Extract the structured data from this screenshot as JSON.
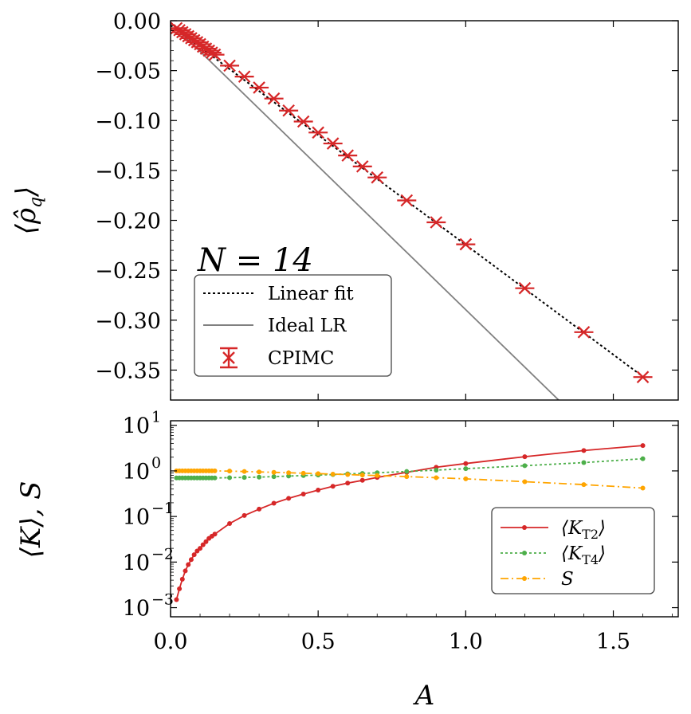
{
  "chart_data": [
    {
      "type": "line",
      "panel": "top",
      "xlabel": "",
      "ylabel": "⟨ρ̂_q⟩",
      "ylabel_display": "⟨ρ̂q⟩",
      "xlim": [
        0.0,
        1.72
      ],
      "ylim": [
        -0.38,
        0.0
      ],
      "yticks": [
        0.0,
        -0.05,
        -0.1,
        -0.15,
        -0.2,
        -0.25,
        -0.3,
        -0.35
      ],
      "ytick_labels": [
        "0.00",
        "−0.05",
        "−0.10",
        "−0.15",
        "−0.20",
        "−0.25",
        "−0.30",
        "−0.35"
      ],
      "annotation": "N = 14",
      "legend_position": "lower-left",
      "series": [
        {
          "name": "Linear fit",
          "style": "dotted",
          "color": "#000000",
          "x": [
            0.0,
            1.6
          ],
          "y": [
            -0.0045,
            -0.3565
          ]
        },
        {
          "name": "Ideal LR",
          "style": "solid",
          "color": "#808080",
          "x": [
            0.0,
            1.6
          ],
          "y": [
            -0.002,
            -0.462
          ]
        },
        {
          "name": "CPIMC",
          "style": "errorbar-x",
          "color": "#d62728",
          "x": [
            0.02,
            0.03,
            0.04,
            0.05,
            0.06,
            0.07,
            0.08,
            0.09,
            0.1,
            0.11,
            0.12,
            0.13,
            0.14,
            0.15,
            0.2,
            0.25,
            0.3,
            0.35,
            0.4,
            0.45,
            0.5,
            0.55,
            0.6,
            0.65,
            0.7,
            0.8,
            0.9,
            1.0,
            1.2,
            1.4,
            1.6
          ],
          "y": [
            -0.0075,
            -0.0095,
            -0.0115,
            -0.0135,
            -0.0155,
            -0.0175,
            -0.0195,
            -0.0215,
            -0.0235,
            -0.026,
            -0.028,
            -0.03,
            -0.032,
            -0.034,
            -0.045,
            -0.056,
            -0.067,
            -0.078,
            -0.09,
            -0.101,
            -0.112,
            -0.123,
            -0.135,
            -0.146,
            -0.157,
            -0.18,
            -0.202,
            -0.224,
            -0.268,
            -0.312,
            -0.357
          ]
        }
      ]
    },
    {
      "type": "line",
      "panel": "bottom",
      "xlabel": "A",
      "ylabel": "⟨K⟩, S",
      "xlim": [
        0.0,
        1.72
      ],
      "ylim_exp": [
        -3.2,
        1.1
      ],
      "yscale": "log",
      "xticks": [
        0.0,
        0.5,
        1.0,
        1.5
      ],
      "xtick_labels": [
        "0.0",
        "0.5",
        "1.0",
        "1.5"
      ],
      "ytick_exponents": [
        -3,
        -2,
        -1,
        0,
        1
      ],
      "ytick_base": "10",
      "legend_position": "lower-right",
      "series": [
        {
          "name": "⟨K_T2⟩",
          "label_main": "⟨K",
          "label_sub": "T2",
          "label_close": "⟩",
          "style": "solid",
          "color": "#d62728",
          "x": [
            0.02,
            0.03,
            0.04,
            0.05,
            0.06,
            0.07,
            0.08,
            0.09,
            0.1,
            0.11,
            0.12,
            0.13,
            0.14,
            0.15,
            0.2,
            0.25,
            0.3,
            0.35,
            0.4,
            0.45,
            0.5,
            0.55,
            0.6,
            0.65,
            0.7,
            0.8,
            0.9,
            1.0,
            1.2,
            1.4,
            1.6
          ],
          "y": [
            0.0015,
            0.0026,
            0.0042,
            0.0064,
            0.0088,
            0.0113,
            0.0145,
            0.0175,
            0.02,
            0.024,
            0.028,
            0.033,
            0.037,
            0.041,
            0.07,
            0.105,
            0.145,
            0.195,
            0.25,
            0.31,
            0.38,
            0.46,
            0.54,
            0.62,
            0.72,
            0.93,
            1.2,
            1.45,
            2.05,
            2.8,
            3.6
          ]
        },
        {
          "name": "⟨K_T4⟩",
          "label_main": "⟨K",
          "label_sub": "T4",
          "label_close": "⟩",
          "style": "dotted",
          "color": "#4daf4a",
          "x": [
            0.02,
            0.03,
            0.04,
            0.05,
            0.06,
            0.07,
            0.08,
            0.09,
            0.1,
            0.11,
            0.12,
            0.13,
            0.14,
            0.15,
            0.2,
            0.25,
            0.3,
            0.35,
            0.4,
            0.45,
            0.5,
            0.55,
            0.6,
            0.65,
            0.7,
            0.8,
            0.9,
            1.0,
            1.2,
            1.4,
            1.6
          ],
          "y": [
            0.7,
            0.7,
            0.7,
            0.7,
            0.7,
            0.7,
            0.7,
            0.7,
            0.7,
            0.7,
            0.7,
            0.7,
            0.7,
            0.7,
            0.71,
            0.72,
            0.73,
            0.75,
            0.77,
            0.79,
            0.81,
            0.83,
            0.86,
            0.88,
            0.91,
            0.97,
            1.04,
            1.12,
            1.3,
            1.52,
            1.85
          ]
        },
        {
          "name": "S",
          "label_main": "S",
          "label_sub": "",
          "label_close": "",
          "style": "dashdot",
          "color": "#ffa500",
          "x": [
            0.02,
            0.03,
            0.04,
            0.05,
            0.06,
            0.07,
            0.08,
            0.09,
            0.1,
            0.11,
            0.12,
            0.13,
            0.14,
            0.15,
            0.2,
            0.25,
            0.3,
            0.35,
            0.4,
            0.45,
            0.5,
            0.55,
            0.6,
            0.65,
            0.7,
            0.8,
            0.9,
            1.0,
            1.2,
            1.4,
            1.6
          ],
          "y": [
            1.0,
            1.0,
            1.0,
            1.0,
            1.0,
            1.0,
            1.0,
            1.0,
            1.0,
            1.0,
            1.0,
            1.0,
            1.0,
            1.0,
            0.99,
            0.97,
            0.95,
            0.93,
            0.91,
            0.89,
            0.87,
            0.85,
            0.83,
            0.81,
            0.79,
            0.75,
            0.71,
            0.67,
            0.58,
            0.5,
            0.42
          ]
        }
      ]
    }
  ]
}
